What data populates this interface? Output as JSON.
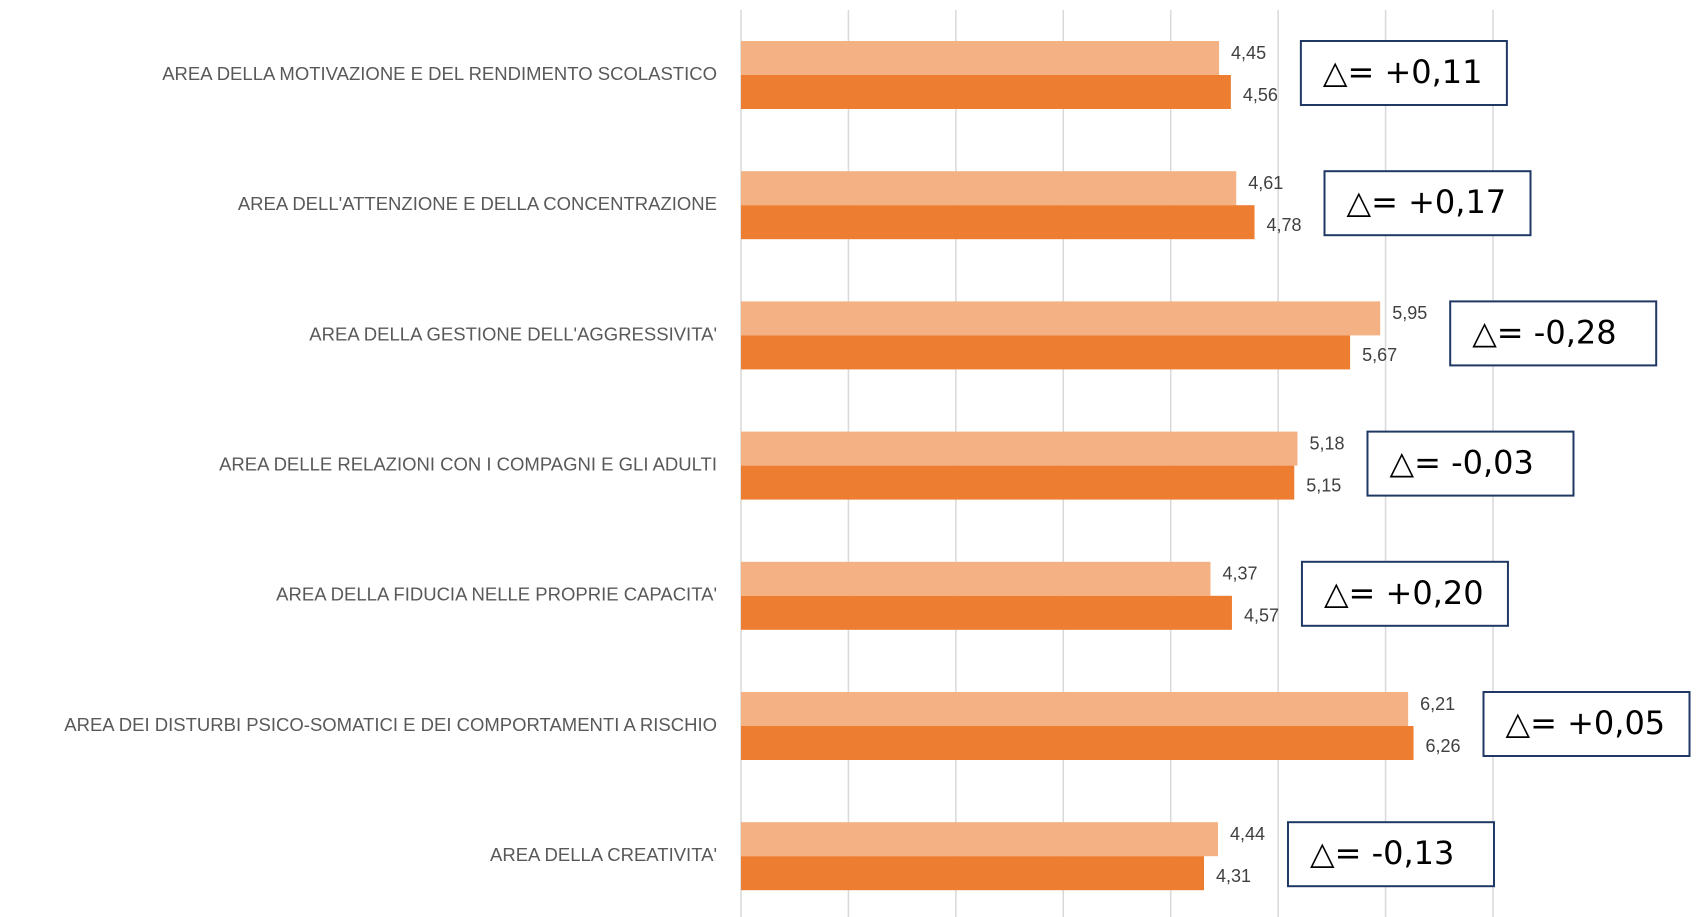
{
  "chart_data": {
    "type": "bar",
    "orientation": "horizontal",
    "categories": [
      "AREA DELLA MOTIVAZIONE E DEL RENDIMENTO SCOLASTICO",
      "AREA DELL'ATTENZIONE E DELLA CONCENTRAZIONE",
      "AREA DELLA GESTIONE DELL'AGGRESSIVITA'",
      "AREA DELLE RELAZIONI CON I COMPAGNI E GLI ADULTI",
      "AREA DELLA FIDUCIA NELLE PROPRIE CAPACITA'",
      "AREA DEI DISTURBI PSICO-SOMATICI E DEI COMPORTAMENTI A RISCHIO",
      "AREA DELLA CREATIVITA'"
    ],
    "series": [
      {
        "color": "#f4b183",
        "values": [
          4.45,
          4.61,
          5.95,
          5.18,
          4.37,
          6.21,
          4.44
        ],
        "value_labels": [
          "4,45",
          "4,61",
          "5,95",
          "5,18",
          "4,37",
          "6,21",
          "4,44"
        ]
      },
      {
        "color": "#ed7d31",
        "values": [
          4.56,
          4.78,
          5.67,
          5.15,
          4.57,
          6.26,
          4.31
        ],
        "value_labels": [
          "4,56",
          "4,78",
          "5,67",
          "5,15",
          "4,57",
          "6,26",
          "4,31"
        ]
      }
    ],
    "annotations": [
      "△= +0,11",
      "△= +0,17",
      "△= -0,28",
      "△= -0,03",
      "△= +0,20",
      "△= +0,05",
      "△= -0,13"
    ],
    "xlim": [
      0,
      7
    ],
    "xticks": [
      0,
      1,
      2,
      3,
      4,
      5,
      6,
      7
    ],
    "grid": true
  }
}
